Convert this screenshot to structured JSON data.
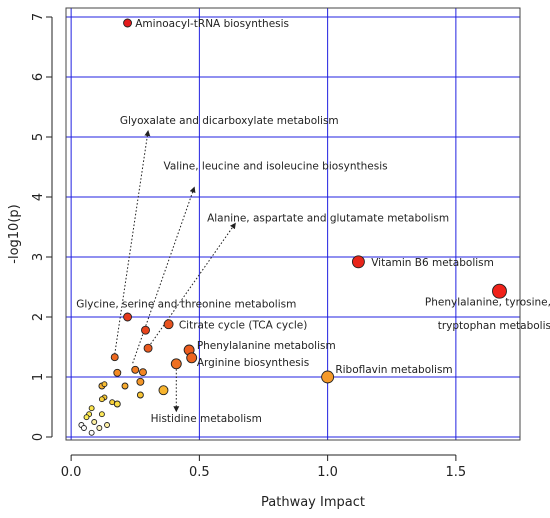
{
  "chart_data": {
    "type": "scatter",
    "title": "",
    "xlabel": "Pathway Impact",
    "ylabel": "-log10(p)",
    "xlim": [
      -0.02,
      1.75
    ],
    "ylim": [
      -0.05,
      7.15
    ],
    "x_ticks": [
      "0.0",
      "0.5",
      "1.0",
      "1.5"
    ],
    "x_tick_values": [
      0,
      0.5,
      1.0,
      1.5
    ],
    "y_ticks": [
      "0",
      "1",
      "2",
      "3",
      "4",
      "5",
      "6",
      "7"
    ],
    "y_tick_values": [
      0,
      1,
      2,
      3,
      4,
      5,
      6,
      7
    ],
    "grid": true,
    "grid_color": "#2020e0",
    "points": [
      {
        "x": 0.22,
        "y": 6.9,
        "color": "#e41a1c",
        "size": 4
      },
      {
        "x": 1.12,
        "y": 2.92,
        "color": "#e8251a",
        "size": 6
      },
      {
        "x": 1.67,
        "y": 2.43,
        "color": "#f0221a",
        "size": 7
      },
      {
        "x": 0.22,
        "y": 2.0,
        "color": "#e63a1c",
        "size": 4
      },
      {
        "x": 0.29,
        "y": 1.78,
        "color": "#e8441c",
        "size": 4
      },
      {
        "x": 0.38,
        "y": 1.88,
        "color": "#e8521e",
        "size": 4.5
      },
      {
        "x": 0.3,
        "y": 1.48,
        "color": "#ea5a20",
        "size": 4
      },
      {
        "x": 0.46,
        "y": 1.45,
        "color": "#ec5c1e",
        "size": 5
      },
      {
        "x": 0.47,
        "y": 1.32,
        "color": "#ee6420",
        "size": 5
      },
      {
        "x": 0.41,
        "y": 1.22,
        "color": "#ee7022",
        "size": 5
      },
      {
        "x": 0.17,
        "y": 1.33,
        "color": "#ee6a20",
        "size": 3.5
      },
      {
        "x": 0.25,
        "y": 1.12,
        "color": "#f07c22",
        "size": 3.5
      },
      {
        "x": 0.18,
        "y": 1.07,
        "color": "#f28a24",
        "size": 3.5
      },
      {
        "x": 0.28,
        "y": 1.08,
        "color": "#f28424",
        "size": 3.5
      },
      {
        "x": 1.0,
        "y": 1.0,
        "color": "#f59a2a",
        "size": 6
      },
      {
        "x": 0.27,
        "y": 0.92,
        "color": "#f49628",
        "size": 3.5
      },
      {
        "x": 0.12,
        "y": 0.85,
        "color": "#f6b030",
        "size": 3
      },
      {
        "x": 0.21,
        "y": 0.85,
        "color": "#f6aa2e",
        "size": 3
      },
      {
        "x": 0.13,
        "y": 0.88,
        "color": "#f8be34",
        "size": 2.5
      },
      {
        "x": 0.36,
        "y": 0.78,
        "color": "#f7b42e",
        "size": 4.5
      },
      {
        "x": 0.13,
        "y": 0.66,
        "color": "#f8c836",
        "size": 2.5
      },
      {
        "x": 0.12,
        "y": 0.63,
        "color": "#fad23c",
        "size": 2.5
      },
      {
        "x": 0.16,
        "y": 0.58,
        "color": "#fad23c",
        "size": 2.5
      },
      {
        "x": 0.27,
        "y": 0.7,
        "color": "#f8c434",
        "size": 3
      },
      {
        "x": 0.18,
        "y": 0.55,
        "color": "#fadc44",
        "size": 3
      },
      {
        "x": 0.08,
        "y": 0.48,
        "color": "#fce44c",
        "size": 2.5
      },
      {
        "x": 0.07,
        "y": 0.38,
        "color": "#fdea52",
        "size": 2.5
      },
      {
        "x": 0.06,
        "y": 0.33,
        "color": "#fdee58",
        "size": 2.5
      },
      {
        "x": 0.12,
        "y": 0.38,
        "color": "#fee95a",
        "size": 2.5
      },
      {
        "x": 0.09,
        "y": 0.25,
        "color": "#fef0a0",
        "size": 2.5
      },
      {
        "x": 0.14,
        "y": 0.2,
        "color": "#fff2a8",
        "size": 2.5
      },
      {
        "x": 0.11,
        "y": 0.15,
        "color": "#fff6c4",
        "size": 2.5
      },
      {
        "x": 0.04,
        "y": 0.2,
        "color": "#ffffff",
        "size": 2.5
      },
      {
        "x": 0.05,
        "y": 0.15,
        "color": "#ffffff",
        "size": 2.5
      },
      {
        "x": 0.08,
        "y": 0.07,
        "color": "#ffffff",
        "size": 2.5
      }
    ],
    "annotations": [
      {
        "text": "Aminoacyl-tRNA biosynthesis",
        "x": 0.25,
        "y": 6.83,
        "anchor": "start"
      },
      {
        "text": "Glyoxalate and dicarboxylate metabolism",
        "x": 0.19,
        "y": 5.22,
        "anchor": "start"
      },
      {
        "text": "Valine, leucine and isoleucine biosynthesis",
        "x": 0.36,
        "y": 4.46,
        "anchor": "start"
      },
      {
        "text": "Alanine, aspartate and glutamate metabolism",
        "x": 0.53,
        "y": 3.59,
        "anchor": "start"
      },
      {
        "text": "Vitamin B6 metabolism",
        "x": 1.17,
        "y": 2.85,
        "anchor": "start"
      },
      {
        "text": "Phenylalanine, tyrosine, and",
        "x": 1.67,
        "y": 2.19,
        "anchor": "middle"
      },
      {
        "text": "tryptophan metabolism",
        "x": 1.67,
        "y": 1.8,
        "anchor": "middle"
      },
      {
        "text": "Glycine, serine and threonine metabolism",
        "x": 0.02,
        "y": 2.16,
        "anchor": "start"
      },
      {
        "text": "Citrate cycle (TCA cycle)",
        "x": 0.42,
        "y": 1.81,
        "anchor": "start"
      },
      {
        "text": "Phenylalanine metabolism",
        "x": 0.49,
        "y": 1.47,
        "anchor": "start"
      },
      {
        "text": "Arginine biosynthesis",
        "x": 0.49,
        "y": 1.18,
        "anchor": "start"
      },
      {
        "text": "Riboflavin metabolism",
        "x": 1.03,
        "y": 1.07,
        "anchor": "start"
      },
      {
        "text": "Histidine metabolism",
        "x": 0.31,
        "y": 0.25,
        "anchor": "start"
      }
    ],
    "arrows": [
      {
        "from": [
          0.17,
          1.38
        ],
        "to": [
          0.3,
          5.1
        ]
      },
      {
        "from": [
          0.24,
          1.23
        ],
        "to": [
          0.48,
          4.16
        ]
      },
      {
        "from": [
          0.31,
          1.55
        ],
        "to": [
          0.64,
          3.56
        ]
      },
      {
        "from": [
          0.41,
          1.13
        ],
        "to": [
          0.41,
          0.43
        ]
      }
    ]
  }
}
